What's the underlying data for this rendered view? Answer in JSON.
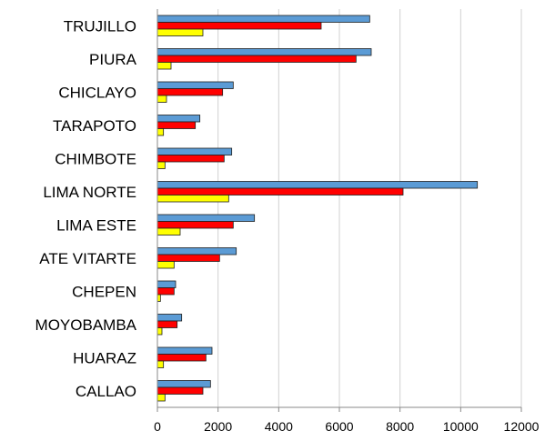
{
  "chart_data": {
    "type": "bar",
    "orientation": "horizontal",
    "categories": [
      "TRUJILLO",
      "PIURA",
      "CHICLAYO",
      "TARAPOTO",
      "CHIMBOTE",
      "LIMA NORTE",
      "LIMA ESTE",
      "ATE VITARTE",
      "CHEPEN",
      "MOYOBAMBA",
      "HUARAZ",
      "CALLAO"
    ],
    "series": [
      {
        "color": "#5b9bd5",
        "values": [
          7000,
          7050,
          2500,
          1400,
          2450,
          10550,
          3200,
          2600,
          600,
          800,
          1800,
          1750
        ]
      },
      {
        "color": "#ff0000",
        "values": [
          5400,
          6550,
          2150,
          1250,
          2200,
          8100,
          2500,
          2050,
          550,
          650,
          1600,
          1500
        ]
      },
      {
        "color": "#ffff00",
        "values": [
          1500,
          450,
          300,
          200,
          250,
          2350,
          750,
          550,
          100,
          150,
          200,
          250
        ]
      }
    ],
    "xlim": [
      0,
      12000
    ],
    "xticks": [
      "0",
      "2000",
      "4000",
      "6000",
      "8000",
      "10000",
      "12000"
    ],
    "grid": true,
    "legend": "none"
  }
}
